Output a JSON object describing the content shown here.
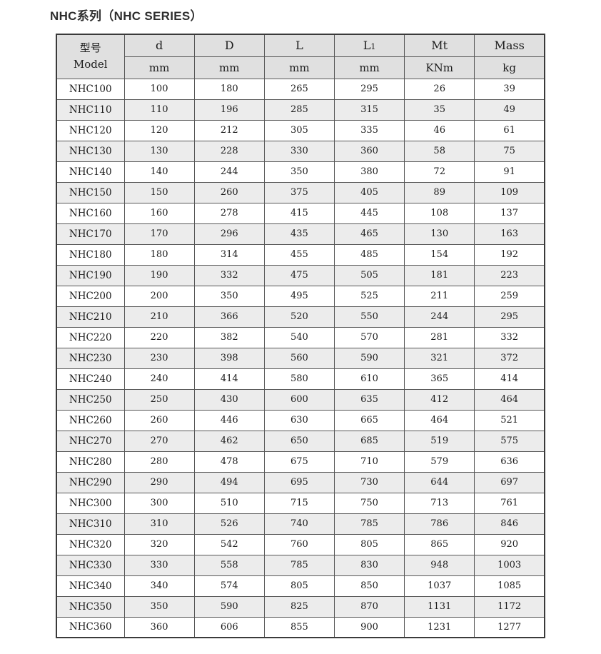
{
  "page": {
    "title": "NHC系列（NHC SERIES）"
  },
  "table": {
    "header": {
      "model_cn": "型号",
      "model_en": "Model",
      "columns": [
        {
          "name": "d",
          "sub": "",
          "unit": "mm"
        },
        {
          "name": "D",
          "sub": "",
          "unit": "mm"
        },
        {
          "name": "L",
          "sub": "",
          "unit": "mm"
        },
        {
          "name": "L",
          "sub": "1",
          "unit": "mm"
        },
        {
          "name": "Mt",
          "sub": "",
          "unit": "KNm"
        },
        {
          "name": "Mass",
          "sub": "",
          "unit": "kg"
        }
      ]
    },
    "rows": [
      {
        "model": "NHC100",
        "values": [
          100,
          180,
          265,
          295,
          26,
          39
        ]
      },
      {
        "model": "NHC110",
        "values": [
          110,
          196,
          285,
          315,
          35,
          49
        ]
      },
      {
        "model": "NHC120",
        "values": [
          120,
          212,
          305,
          335,
          46,
          61
        ]
      },
      {
        "model": "NHC130",
        "values": [
          130,
          228,
          330,
          360,
          58,
          75
        ]
      },
      {
        "model": "NHC140",
        "values": [
          140,
          244,
          350,
          380,
          72,
          91
        ]
      },
      {
        "model": "NHC150",
        "values": [
          150,
          260,
          375,
          405,
          89,
          109
        ]
      },
      {
        "model": "NHC160",
        "values": [
          160,
          278,
          415,
          445,
          108,
          137
        ]
      },
      {
        "model": "NHC170",
        "values": [
          170,
          296,
          435,
          465,
          130,
          163
        ]
      },
      {
        "model": "NHC180",
        "values": [
          180,
          314,
          455,
          485,
          154,
          192
        ]
      },
      {
        "model": "NHC190",
        "values": [
          190,
          332,
          475,
          505,
          181,
          223
        ]
      },
      {
        "model": "NHC200",
        "values": [
          200,
          350,
          495,
          525,
          211,
          259
        ]
      },
      {
        "model": "NHC210",
        "values": [
          210,
          366,
          520,
          550,
          244,
          295
        ]
      },
      {
        "model": "NHC220",
        "values": [
          220,
          382,
          540,
          570,
          281,
          332
        ]
      },
      {
        "model": "NHC230",
        "values": [
          230,
          398,
          560,
          590,
          321,
          372
        ]
      },
      {
        "model": "NHC240",
        "values": [
          240,
          414,
          580,
          610,
          365,
          414
        ]
      },
      {
        "model": "NHC250",
        "values": [
          250,
          430,
          600,
          635,
          412,
          464
        ]
      },
      {
        "model": "NHC260",
        "values": [
          260,
          446,
          630,
          665,
          464,
          521
        ]
      },
      {
        "model": "NHC270",
        "values": [
          270,
          462,
          650,
          685,
          519,
          575
        ]
      },
      {
        "model": "NHC280",
        "values": [
          280,
          478,
          675,
          710,
          579,
          636
        ]
      },
      {
        "model": "NHC290",
        "values": [
          290,
          494,
          695,
          730,
          644,
          697
        ]
      },
      {
        "model": "NHC300",
        "values": [
          300,
          510,
          715,
          750,
          713,
          761
        ]
      },
      {
        "model": "NHC310",
        "values": [
          310,
          526,
          740,
          785,
          786,
          846
        ]
      },
      {
        "model": "NHC320",
        "values": [
          320,
          542,
          760,
          805,
          865,
          920
        ]
      },
      {
        "model": "NHC330",
        "values": [
          330,
          558,
          785,
          830,
          948,
          1003
        ]
      },
      {
        "model": "NHC340",
        "values": [
          340,
          574,
          805,
          850,
          1037,
          1085
        ]
      },
      {
        "model": "NHC350",
        "values": [
          350,
          590,
          825,
          870,
          1131,
          1172
        ]
      },
      {
        "model": "NHC360",
        "values": [
          360,
          606,
          855,
          900,
          1231,
          1277
        ]
      }
    ]
  },
  "colors": {
    "header_background": "#e0e0e0",
    "stripe_background": "#ececec",
    "border": "#575757",
    "text": "#1c1c1c"
  }
}
